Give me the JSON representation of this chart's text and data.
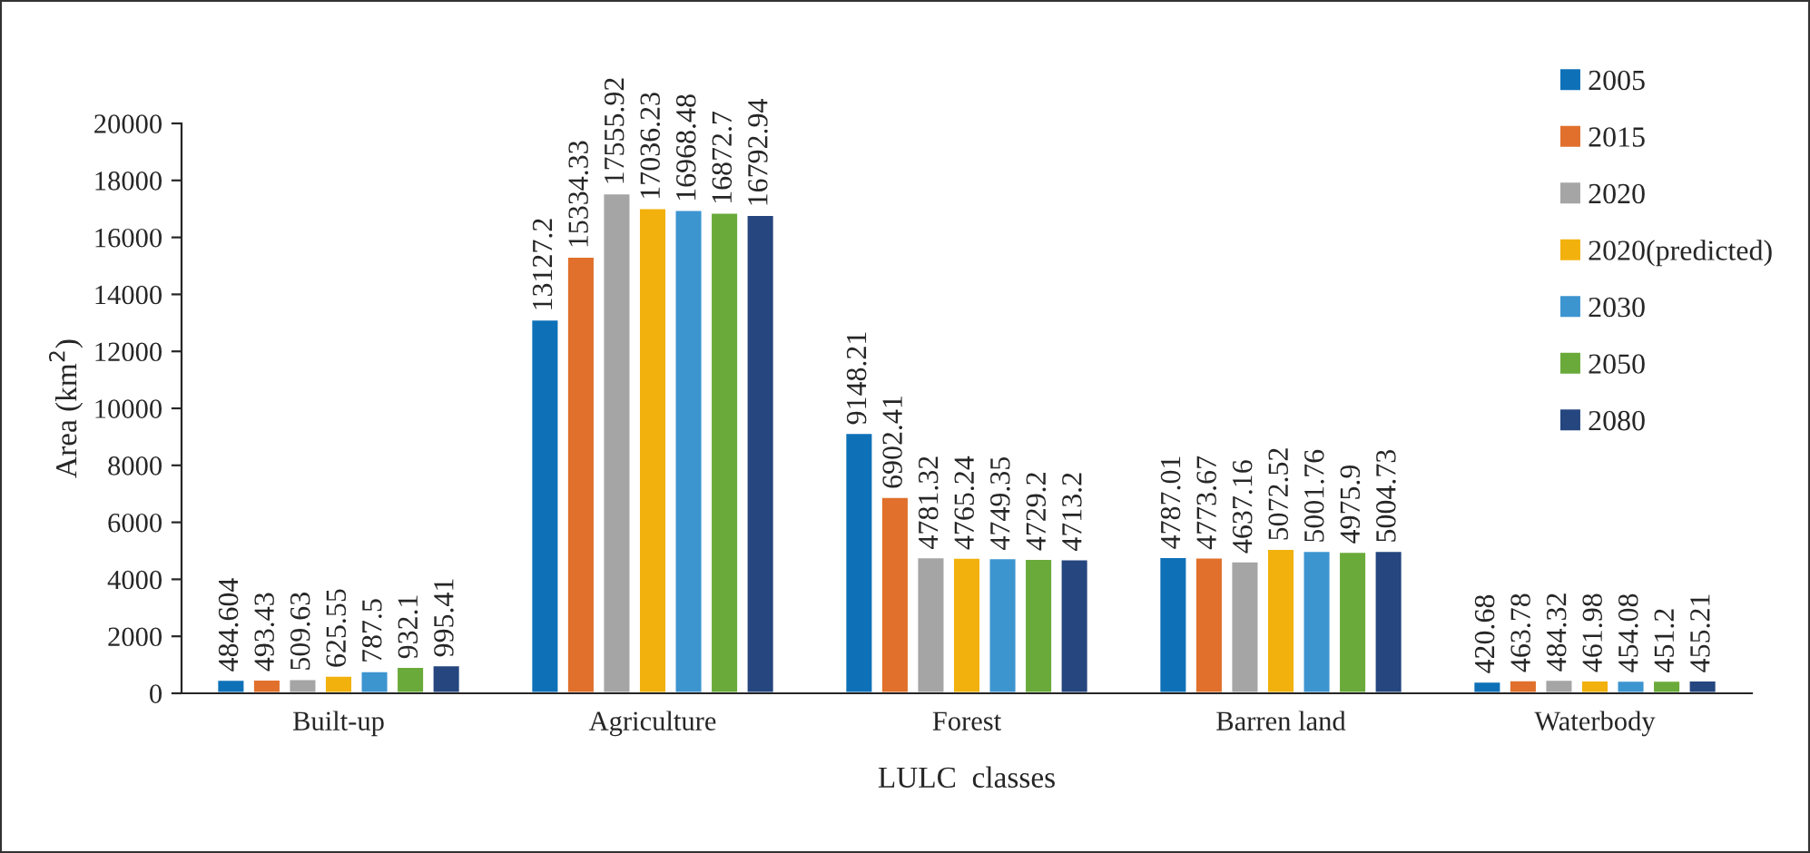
{
  "chart_data": {
    "type": "bar",
    "xlabel": "LULC  classes",
    "ylabel": "Area (km$^{2}$)",
    "categories": [
      "Built-up",
      "Agriculture",
      "Forest",
      "Barren land",
      "Waterbody"
    ],
    "series": [
      {
        "name": "2005",
        "color": "#0e71b8",
        "values": [
          484.604,
          13127.2,
          9148.21,
          4787.01,
          420.68
        ]
      },
      {
        "name": "2015",
        "color": "#e0702c",
        "values": [
          493.43,
          15334.33,
          6902.41,
          4773.67,
          463.78
        ]
      },
      {
        "name": "2020",
        "color": "#a5a5a5",
        "values": [
          509.63,
          17555.92,
          4781.32,
          4637.16,
          484.32
        ]
      },
      {
        "name": "2020(predicted)",
        "color": "#f2b10c",
        "values": [
          625.55,
          17036.23,
          4765.24,
          5072.52,
          461.98
        ]
      },
      {
        "name": "2030",
        "color": "#3d95d0",
        "values": [
          787.5,
          16968.48,
          4749.35,
          5001.76,
          454.08
        ]
      },
      {
        "name": "2050",
        "color": "#6aaa3a",
        "values": [
          932.1,
          16872.7,
          4729.2,
          4975.9,
          451.2
        ]
      },
      {
        "name": "2080",
        "color": "#25467f",
        "values": [
          995.41,
          16792.94,
          4713.2,
          5004.73,
          455.21
        ]
      }
    ],
    "ylim": [
      0,
      20000
    ],
    "yticks": [
      0,
      2000,
      4000,
      6000,
      8000,
      10000,
      12000,
      14000,
      16000,
      18000,
      20000
    ],
    "data_labels": true,
    "legend": "top right",
    "grid": false
  }
}
